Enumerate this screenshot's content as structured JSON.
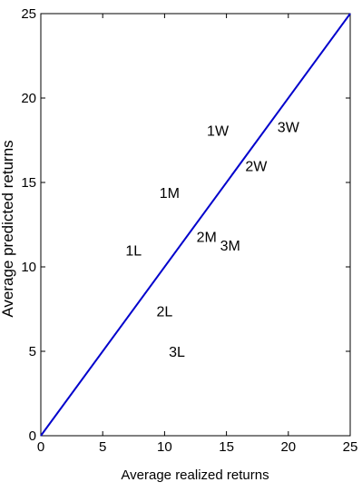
{
  "chart_data": {
    "type": "scatter",
    "title": "",
    "xlabel": "Average realized returns",
    "ylabel": "Average predicted returns",
    "xlim": [
      0,
      25
    ],
    "ylim": [
      0,
      25
    ],
    "xticks": [
      "0",
      "5",
      "10",
      "15",
      "20",
      "25"
    ],
    "yticks": [
      "0",
      "5",
      "10",
      "15",
      "20",
      "25"
    ],
    "grid": false,
    "legend": "none",
    "line_color": "#0000cc",
    "reference_line": {
      "x": [
        0,
        25
      ],
      "y": [
        0,
        25
      ]
    },
    "points": [
      {
        "label": "1W",
        "x": 14.3,
        "y": 18.1
      },
      {
        "label": "3W",
        "x": 20.0,
        "y": 18.3
      },
      {
        "label": "2W",
        "x": 17.4,
        "y": 16.0
      },
      {
        "label": "1M",
        "x": 10.4,
        "y": 14.4
      },
      {
        "label": "2M",
        "x": 13.4,
        "y": 11.8
      },
      {
        "label": "3M",
        "x": 15.3,
        "y": 11.3
      },
      {
        "label": "1L",
        "x": 7.5,
        "y": 11.0
      },
      {
        "label": "2L",
        "x": 10.0,
        "y": 7.4
      },
      {
        "label": "3L",
        "x": 11.0,
        "y": 5.0
      }
    ]
  }
}
